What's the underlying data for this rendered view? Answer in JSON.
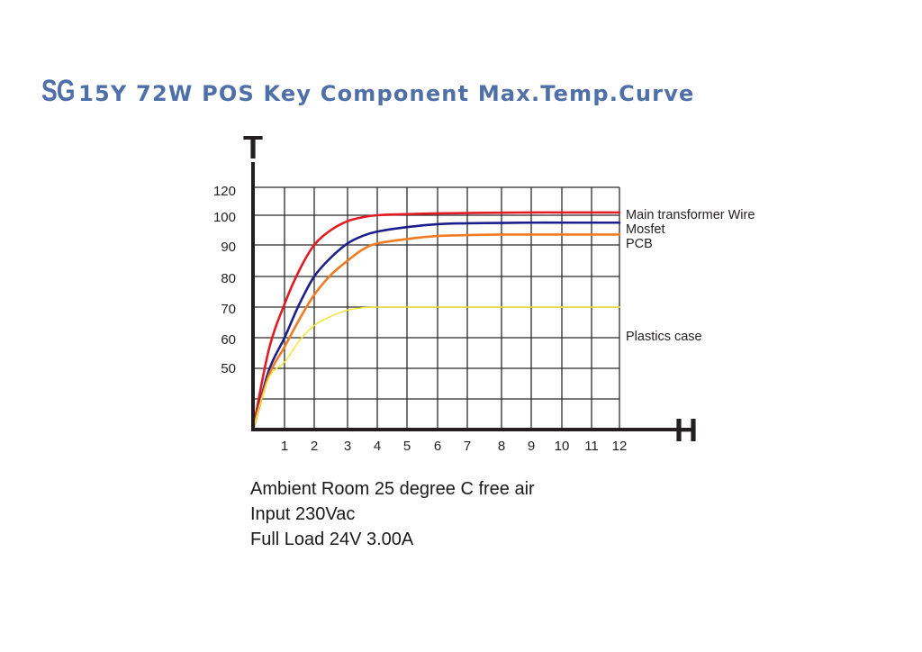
{
  "title": {
    "brand": "SG",
    "text": "15Y  72W  POS Key Component Max.Temp.Curve"
  },
  "chart_data": {
    "type": "line",
    "ylabel": "T",
    "xlabel": "H",
    "x_ticks": [
      "1",
      "2",
      "3",
      "4",
      "5",
      "6",
      "7",
      "8",
      "9",
      "10",
      "11",
      "12"
    ],
    "y_ticks": [
      "50",
      "60",
      "70",
      "80",
      "90",
      "100",
      "120"
    ],
    "grid": true,
    "series": [
      {
        "name": "Main transformer Wire",
        "color": "#e31b23",
        "points": [
          [
            0,
            0
          ],
          [
            0.5,
            56
          ],
          [
            1,
            71
          ],
          [
            1.5,
            82
          ],
          [
            2,
            90
          ],
          [
            2.5,
            95
          ],
          [
            3,
            98
          ],
          [
            3.5,
            99.3
          ],
          [
            4,
            100
          ],
          [
            5,
            100.8
          ],
          [
            6,
            101.3
          ],
          [
            7,
            101.6
          ],
          [
            8,
            101.8
          ],
          [
            9,
            102
          ],
          [
            10,
            102
          ],
          [
            11,
            102
          ],
          [
            12,
            102
          ]
        ]
      },
      {
        "name": "Mosfet",
        "color": "#1c1f8a",
        "points": [
          [
            0,
            0
          ],
          [
            0.5,
            48
          ],
          [
            1,
            60
          ],
          [
            1.5,
            71
          ],
          [
            2,
            80
          ],
          [
            2.5,
            86
          ],
          [
            3,
            90.5
          ],
          [
            3.5,
            93
          ],
          [
            4,
            94.5
          ],
          [
            5,
            96
          ],
          [
            6,
            97
          ],
          [
            7,
            97.3
          ],
          [
            8,
            97.4
          ],
          [
            9,
            97.5
          ],
          [
            10,
            97.5
          ],
          [
            11,
            97.5
          ],
          [
            12,
            97.5
          ]
        ]
      },
      {
        "name": "PCB",
        "color": "#f07b22",
        "points": [
          [
            0,
            0
          ],
          [
            0.5,
            44
          ],
          [
            1,
            57
          ],
          [
            1.5,
            66
          ],
          [
            2,
            74
          ],
          [
            2.5,
            80.5
          ],
          [
            3,
            85
          ],
          [
            3.5,
            88.5
          ],
          [
            4,
            90.5
          ],
          [
            5,
            92
          ],
          [
            6,
            93
          ],
          [
            7,
            93.3
          ],
          [
            8,
            93.5
          ],
          [
            9,
            93.5
          ],
          [
            10,
            93.5
          ],
          [
            11,
            93.5
          ],
          [
            12,
            93.5
          ]
        ]
      },
      {
        "name": "Plastics case",
        "color": "#f5e62a",
        "points": [
          [
            0,
            0
          ],
          [
            0.5,
            42
          ],
          [
            1,
            52
          ],
          [
            1.5,
            59
          ],
          [
            2,
            64
          ],
          [
            2.5,
            67
          ],
          [
            3,
            69
          ],
          [
            3.5,
            69.8
          ],
          [
            4,
            70
          ],
          [
            5,
            70
          ],
          [
            6,
            70
          ],
          [
            7,
            70
          ],
          [
            8,
            70
          ],
          [
            9,
            70
          ],
          [
            10,
            70
          ],
          [
            11,
            70
          ],
          [
            12,
            70
          ]
        ]
      }
    ]
  },
  "notes": [
    "Ambient Room 25 degree C free air",
    "Input 230Vac",
    "Full Load 24V 3.00A"
  ]
}
